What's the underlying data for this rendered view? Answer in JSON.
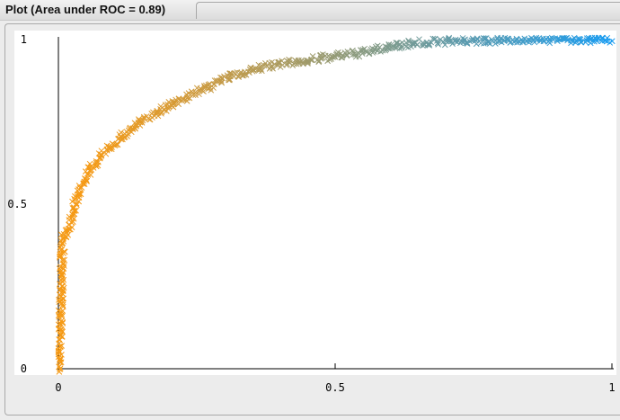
{
  "window": {
    "title": "Plot (Area under ROC = 0.89)"
  },
  "chart_data": {
    "type": "scatter",
    "title": "Plot (Area under ROC = 0.89)",
    "xlabel": "",
    "ylabel": "",
    "xlim": [
      0,
      1
    ],
    "ylim": [
      0,
      1
    ],
    "xticks": [
      "0",
      "0.5",
      "1"
    ],
    "yticks": [
      "0",
      "0.5",
      "1"
    ],
    "grid": false,
    "legend": "none",
    "marker": "x",
    "color_start": "#f59a16",
    "color_end": "#1a9cf0",
    "roc_points": [
      [
        0.0,
        0.0
      ],
      [
        0.002,
        0.05
      ],
      [
        0.003,
        0.1
      ],
      [
        0.004,
        0.15
      ],
      [
        0.004,
        0.2
      ],
      [
        0.005,
        0.25
      ],
      [
        0.006,
        0.3
      ],
      [
        0.007,
        0.35
      ],
      [
        0.008,
        0.38
      ],
      [
        0.012,
        0.41
      ],
      [
        0.02,
        0.44
      ],
      [
        0.03,
        0.5
      ],
      [
        0.04,
        0.55
      ],
      [
        0.055,
        0.6
      ],
      [
        0.08,
        0.65
      ],
      [
        0.11,
        0.7
      ],
      [
        0.15,
        0.75
      ],
      [
        0.2,
        0.8
      ],
      [
        0.25,
        0.84
      ],
      [
        0.3,
        0.88
      ],
      [
        0.35,
        0.91
      ],
      [
        0.4,
        0.925
      ],
      [
        0.45,
        0.935
      ],
      [
        0.5,
        0.95
      ],
      [
        0.55,
        0.96
      ],
      [
        0.6,
        0.98
      ],
      [
        0.65,
        0.99
      ],
      [
        0.7,
        0.995
      ],
      [
        0.75,
        0.997
      ],
      [
        0.8,
        0.999
      ],
      [
        0.85,
        1.0
      ],
      [
        0.9,
        1.0
      ],
      [
        1.0,
        1.0
      ]
    ]
  }
}
